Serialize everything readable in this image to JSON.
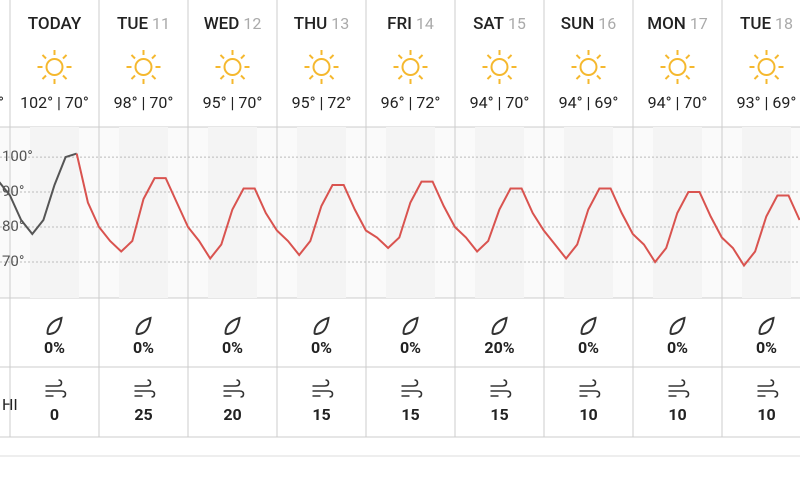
{
  "days": [
    {
      "day": "TODAY",
      "temps": "102° | 70°",
      "precip": "0%",
      "wind": 0
    },
    {
      "day": "TUE",
      "date": "11",
      "temps": "98° | 70°",
      "precip": "0%",
      "wind": 25
    },
    {
      "day": "WED",
      "date": "12",
      "temps": "95° | 70°",
      "precip": "0%",
      "wind": 20
    },
    {
      "day": "THU",
      "date": "13",
      "temps": "95° | 72°",
      "precip": "0%",
      "wind": 15
    },
    {
      "day": "FRI",
      "date": "14",
      "temps": "96° | 72°",
      "precip": "0%",
      "wind": 15
    },
    {
      "day": "SAT",
      "date": "15",
      "temps": "94° | 70°",
      "precip": "20%",
      "wind": 15
    },
    {
      "day": "SUN",
      "date": "16",
      "temps": "94° | 69°",
      "precip": "0%",
      "wind": 10
    },
    {
      "day": "MON",
      "date": "17",
      "temps": "94° | 70°",
      "precip": "0%",
      "wind": 10
    },
    {
      "day": "TUE",
      "date": "18",
      "temps": "93° | 69°",
      "precip": "0%",
      "wind": 10
    }
  ],
  "left_partial": {
    "temps": "°",
    "wind_label": "HI"
  },
  "chart_data": {
    "type": "line",
    "xlim": [
      -2.7,
      213.1
    ],
    "ylim": [
      59.7,
      108.6
    ],
    "yticks": [
      {
        "value": 70,
        "label": "70°"
      },
      {
        "value": 80,
        "label": "80°"
      },
      {
        "value": 90,
        "label": "90°"
      },
      {
        "value": 100,
        "label": "100°"
      }
    ],
    "series": [
      {
        "color": "#555555",
        "x": [
          -3,
          0,
          3,
          6,
          9,
          12,
          15,
          18
        ],
        "values": [
          93,
          89,
          82,
          78,
          82,
          92,
          100,
          101
        ]
      },
      {
        "color": "#d9534f",
        "x": [
          18,
          21,
          24,
          27,
          30,
          33,
          36,
          39,
          42,
          45,
          48,
          51,
          54,
          57,
          60,
          63,
          66,
          69,
          72,
          75,
          78,
          81,
          84,
          87,
          90,
          93,
          96,
          99,
          102,
          105,
          108,
          111,
          114,
          117,
          120,
          123,
          126,
          129,
          132,
          135,
          138,
          141,
          144,
          147,
          150,
          153,
          156,
          159,
          162,
          165,
          168,
          171,
          174,
          177,
          180,
          183,
          186,
          189,
          192,
          195,
          198,
          201,
          204,
          207,
          210,
          213
        ],
        "values": [
          101,
          87,
          80,
          76,
          73,
          76,
          88,
          94,
          94,
          87,
          80,
          76,
          71,
          75,
          85,
          91,
          91,
          84,
          79,
          76,
          72,
          76,
          86,
          92,
          92,
          85,
          79,
          77,
          74,
          77,
          87,
          93,
          93,
          86,
          80,
          77,
          73,
          76,
          85,
          91,
          91,
          84,
          79,
          75,
          71,
          75,
          85,
          91,
          91,
          84,
          78,
          75,
          70,
          74,
          84,
          90,
          90,
          83,
          77,
          74,
          69,
          73,
          83,
          89,
          89,
          82
        ]
      }
    ]
  }
}
